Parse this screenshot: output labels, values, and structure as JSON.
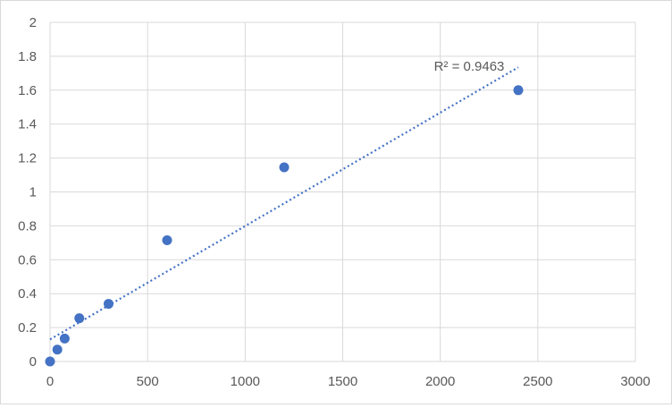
{
  "chart_data": {
    "type": "scatter",
    "title": "",
    "xlabel": "",
    "ylabel": "",
    "xlim": [
      0,
      3000
    ],
    "ylim": [
      0,
      2
    ],
    "x_ticks": [
      0,
      500,
      1000,
      1500,
      2000,
      2500,
      3000
    ],
    "y_ticks": [
      0,
      0.2,
      0.4,
      0.6,
      0.8,
      1,
      1.2,
      1.4,
      1.6,
      1.8,
      2
    ],
    "x_tick_labels": [
      "0",
      "500",
      "1000",
      "1500",
      "2000",
      "2500",
      "3000"
    ],
    "y_tick_labels": [
      "0",
      "0.2",
      "0.4",
      "0.6",
      "0.8",
      "1",
      "1.2",
      "1.4",
      "1.6",
      "1.8",
      "2"
    ],
    "grid": true,
    "legend": "none",
    "series": [
      {
        "x": [
          0,
          37.5,
          75,
          150,
          300,
          600,
          1200,
          2400
        ],
        "y": [
          0.0,
          0.07,
          0.135,
          0.255,
          0.34,
          0.715,
          1.145,
          1.6
        ],
        "color": "#4472c4"
      }
    ],
    "trendline": {
      "type": "linear",
      "x_range": [
        0,
        2400
      ],
      "y_start": 0.13,
      "y_end": 1.735,
      "color": "#4472c4",
      "style": "dotted",
      "label": "R² = 0.9463"
    }
  }
}
